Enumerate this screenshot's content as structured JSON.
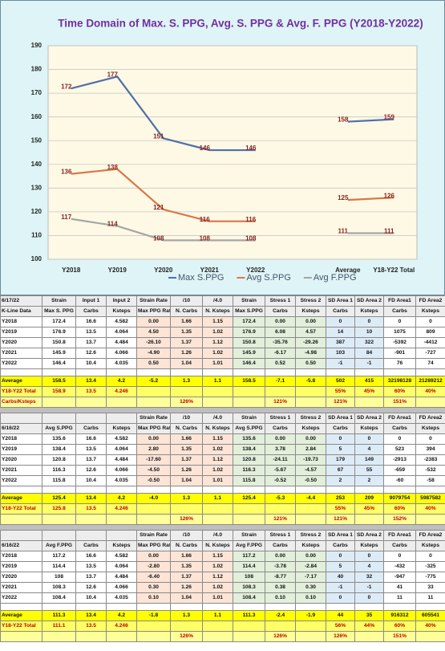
{
  "chart_data": {
    "type": "line",
    "title": "Time Domain of Max. S. PPG, Avg. S. PPG & Avg. F. PPG  (Y2018-Y2022)",
    "categories": [
      "Y2018",
      "Y2019",
      "Y2020",
      "Y2021",
      "Y2022",
      null,
      "Average",
      "Y18-Y22 Total"
    ],
    "series": [
      {
        "name": "Max S.PPG",
        "color": "#4f6fa8",
        "values": [
          172,
          177,
          151,
          146,
          146,
          null,
          158,
          159
        ]
      },
      {
        "name": "Avg S.PPG",
        "color": "#d8774b",
        "values": [
          136,
          138,
          121,
          116,
          116,
          null,
          125,
          126
        ]
      },
      {
        "name": "Avg F.PPG",
        "color": "#a6a6a6",
        "values": [
          117,
          114,
          108,
          108,
          108,
          null,
          111,
          111
        ]
      }
    ],
    "ylim": [
      100,
      190
    ],
    "yticks": [
      100,
      110,
      120,
      130,
      140,
      150,
      160,
      170,
      180,
      190
    ],
    "grid": true,
    "legend": "bottom"
  },
  "tables": [
    {
      "header_rows": [
        [
          "6/17/22",
          "Strain",
          "Input 1",
          "Input 2",
          "Strain Rate",
          "/10",
          "/4.0",
          "Strain",
          "Stress 1",
          "Stress 2",
          "SD Area 1",
          "SD Area 2",
          "FD Area1",
          "FD Area2"
        ],
        [
          "K-Line Data",
          "Max S. PPG",
          "Carbs",
          "Ksteps",
          "Max PPG Rate",
          "N. Carbs",
          "N. Ksteps",
          "Max S.PPG",
          "Carbs",
          "Ksteps",
          "Carbs",
          "Ksteps",
          "Carbs",
          "Ksteps"
        ]
      ],
      "year_rows": [
        [
          "Y2018",
          "172.4",
          "16.6",
          "4.582",
          "0.00",
          "1.66",
          "1.15",
          "172.4",
          "0.00",
          "0.00",
          "0",
          "0",
          "0",
          "0"
        ],
        [
          "Y2019",
          "176.9",
          "13.5",
          "4.064",
          "4.50",
          "1.35",
          "1.02",
          "176.9",
          "6.08",
          "4.57",
          "14",
          "10",
          "1075",
          "809"
        ],
        [
          "Y2020",
          "150.8",
          "13.7",
          "4.484",
          "-26.10",
          "1.37",
          "1.12",
          "150.8",
          "-35.76",
          "-29.26",
          "387",
          "322",
          "-5392",
          "-4412"
        ],
        [
          "Y2021",
          "145.9",
          "12.6",
          "4.066",
          "-4.90",
          "1.26",
          "1.02",
          "145.9",
          "-6.17",
          "-4.98",
          "103",
          "84",
          "-901",
          "-727"
        ],
        [
          "Y2022",
          "146.4",
          "10.4",
          "4.035",
          "0.50",
          "1.04",
          "1.01",
          "146.4",
          "0.52",
          "0.50",
          "-1",
          "-1",
          "76",
          "74"
        ]
      ],
      "summary_rows": [
        [
          "Average",
          "158.5",
          "13.4",
          "4.2",
          "-5.2",
          "1.3",
          "1.1",
          "158.5",
          "-7.1",
          "-5.8",
          "502",
          "415",
          "32198128",
          "21289212"
        ],
        [
          "Y18-Y22 Total",
          "158.9",
          "13.5",
          "4.246",
          null,
          null,
          null,
          null,
          null,
          null,
          "55%",
          "45%",
          "60%",
          "40%"
        ],
        [
          "Carbs/Ksteps",
          null,
          null,
          null,
          null,
          "126%",
          null,
          null,
          "121%",
          null,
          "121%",
          null,
          "151%",
          null
        ]
      ]
    },
    {
      "header_rows": [
        [
          null,
          null,
          null,
          null,
          "Strain Rate",
          "/10",
          "/4.0",
          "Strain",
          "Stress 1",
          "Stress 2",
          "SD Area 1",
          "SD Area 2",
          "FD Area1",
          "FD Area2"
        ],
        [
          "6/16/22",
          "Avg S.PPG",
          "Carbs",
          "Ksteps",
          "Max PPG Rate",
          "N. Carbs",
          "N. Ksteps",
          "Avg S.PPG",
          "Carbs",
          "Ksteps",
          "Carbs",
          "Ksteps",
          "Carbs",
          "Ksteps"
        ]
      ],
      "year_rows": [
        [
          "Y2018",
          "135.6",
          "16.6",
          "4.582",
          "0.00",
          "1.66",
          "1.15",
          "135.6",
          "0.00",
          "0.00",
          "0",
          "0",
          "0",
          "0"
        ],
        [
          "Y2019",
          "138.4",
          "13.5",
          "4.064",
          "2.80",
          "1.35",
          "1.02",
          "138.4",
          "3.78",
          "2.84",
          "5",
          "4",
          "523",
          "394"
        ],
        [
          "Y2020",
          "120.8",
          "13.7",
          "4.484",
          "-17.60",
          "1.37",
          "1.12",
          "120.8",
          "-24.11",
          "-19.73",
          "179",
          "149",
          "-2913",
          "-2383"
        ],
        [
          "Y2021",
          "116.3",
          "12.6",
          "4.066",
          "-4.50",
          "1.26",
          "1.02",
          "116.3",
          "-5.67",
          "-4.57",
          "67",
          "55",
          "-659",
          "-532"
        ],
        [
          "Y2022",
          "115.8",
          "10.4",
          "4.035",
          "-0.50",
          "1.04",
          "1.01",
          "115.8",
          "-0.52",
          "-0.50",
          "2",
          "2",
          "-60",
          "-58"
        ]
      ],
      "summary_rows": [
        [
          "Average",
          "125.4",
          "13.4",
          "4.2",
          "-4.0",
          "1.3",
          "1.1",
          "125.4",
          "-5.3",
          "-4.4",
          "253",
          "209",
          "9079754",
          "5987582"
        ],
        [
          "Y18-Y22 Total",
          "125.8",
          "13.5",
          "4.246",
          null,
          null,
          null,
          null,
          null,
          null,
          "55%",
          "45%",
          "60%",
          "40%"
        ],
        [
          null,
          null,
          null,
          null,
          null,
          "126%",
          null,
          null,
          "121%",
          null,
          "121%",
          null,
          "152%",
          null
        ]
      ]
    },
    {
      "header_rows": [
        [
          null,
          null,
          null,
          null,
          "Strain Rate",
          "/10",
          "/4.0",
          "Strain",
          "Stress 1",
          "Stress 2",
          "SD Area 1",
          "SD Area 2",
          "FD Area1",
          "FD Area2"
        ],
        [
          "6/16/22",
          "Avg F.PPG",
          "Carbs",
          "Ksteps",
          "Max PPG Rate",
          "N. Carbs",
          "N. Ksteps",
          "Avg F.PPG",
          "Carbs",
          "Ksteps",
          "Carbs",
          "Ksteps",
          "Carbs",
          "Ksteps"
        ]
      ],
      "year_rows": [
        [
          "Y2018",
          "117.2",
          "16.6",
          "4.582",
          "0.00",
          "1.66",
          "1.15",
          "117.2",
          "0.00",
          "0.00",
          "0",
          "0",
          "0",
          "0"
        ],
        [
          "Y2019",
          "114.4",
          "13.5",
          "4.064",
          "-2.80",
          "1.35",
          "1.02",
          "114.4",
          "-3.78",
          "-2.84",
          "5",
          "4",
          "-432",
          "-325"
        ],
        [
          "Y2020",
          "108",
          "13.7",
          "4.484",
          "-6.40",
          "1.37",
          "1.12",
          "108",
          "-8.77",
          "-7.17",
          "40",
          "32",
          "-947",
          "-775"
        ],
        [
          "Y2021",
          "108.3",
          "12.6",
          "4.066",
          "0.30",
          "1.26",
          "1.02",
          "108.3",
          "0.38",
          "0.30",
          "-1",
          "-1",
          "41",
          "33"
        ],
        [
          "Y2022",
          "108.4",
          "10.4",
          "4.035",
          "0.10",
          "1.04",
          "1.01",
          "108.4",
          "0.10",
          "0.10",
          "0",
          "0",
          "11",
          "11"
        ]
      ],
      "summary_rows": [
        [
          "Average",
          "111.3",
          "13.4",
          "4.2",
          "-1.8",
          "1.3",
          "1.1",
          "111.3",
          "-2.4",
          "-1.9",
          "44",
          "35",
          "916312",
          "605541"
        ],
        [
          "Y18-Y22 Total",
          "111.1",
          "13.5",
          "4.246",
          null,
          null,
          null,
          null,
          null,
          null,
          "56%",
          "44%",
          "60%",
          "40%"
        ],
        [
          null,
          null,
          null,
          null,
          null,
          "126%",
          null,
          null,
          "126%",
          null,
          "126%",
          null,
          "151%",
          null
        ]
      ]
    }
  ]
}
